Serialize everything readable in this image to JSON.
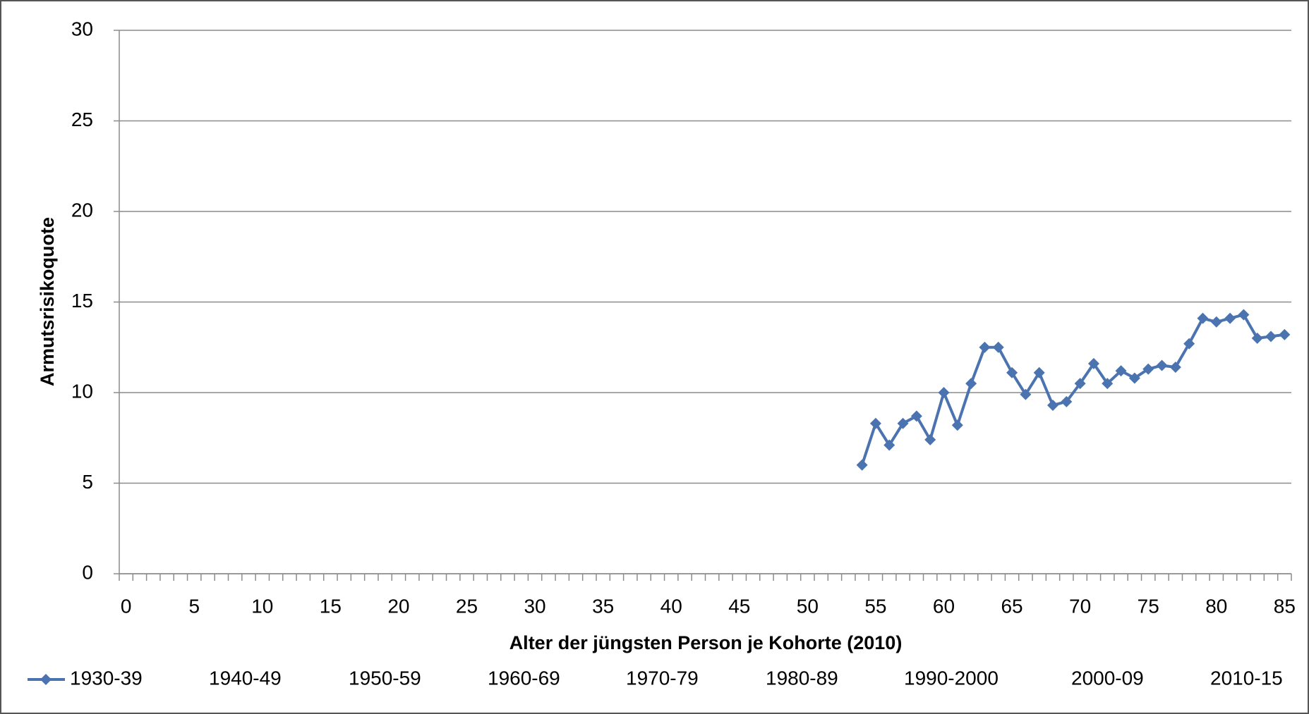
{
  "chart_data": {
    "type": "line",
    "xlabel": "Alter der jüngsten Person je Kohorte (2010)",
    "ylabel": "Armutsrisikoquote",
    "x": [
      54,
      55,
      56,
      57,
      58,
      59,
      60,
      61,
      62,
      63,
      64,
      65,
      66,
      67,
      68,
      69,
      70,
      71,
      72,
      73,
      74,
      75,
      76,
      77,
      78,
      79,
      80,
      81,
      82,
      83,
      84,
      85
    ],
    "series": [
      {
        "name": "1930-39",
        "color": "#4a73b0",
        "values": [
          6.0,
          8.3,
          7.1,
          8.3,
          8.7,
          7.4,
          10.0,
          8.2,
          10.5,
          12.5,
          12.5,
          11.1,
          9.9,
          11.1,
          9.3,
          9.5,
          10.5,
          11.6,
          10.5,
          11.2,
          10.8,
          11.3,
          11.5,
          11.4,
          12.7,
          14.1,
          13.9,
          14.1,
          14.3,
          13.0,
          13.1,
          13.2
        ]
      },
      {
        "name": "1940-49",
        "values": [
          null,
          null,
          null,
          null,
          null,
          null,
          null,
          null,
          null,
          null,
          null,
          null,
          null,
          null,
          null,
          null,
          null,
          null,
          null,
          null,
          null,
          null,
          null,
          null,
          null,
          null,
          null,
          null,
          null,
          null,
          null,
          null
        ]
      },
      {
        "name": "1950-59",
        "values": [
          null,
          null,
          null,
          null,
          null,
          null,
          null,
          null,
          null,
          null,
          null,
          null,
          null,
          null,
          null,
          null,
          null,
          null,
          null,
          null,
          null,
          null,
          null,
          null,
          null,
          null,
          null,
          null,
          null,
          null,
          null,
          null
        ]
      },
      {
        "name": "1960-69",
        "values": [
          null,
          null,
          null,
          null,
          null,
          null,
          null,
          null,
          null,
          null,
          null,
          null,
          null,
          null,
          null,
          null,
          null,
          null,
          null,
          null,
          null,
          null,
          null,
          null,
          null,
          null,
          null,
          null,
          null,
          null,
          null,
          null
        ]
      },
      {
        "name": "1970-79",
        "values": [
          null,
          null,
          null,
          null,
          null,
          null,
          null,
          null,
          null,
          null,
          null,
          null,
          null,
          null,
          null,
          null,
          null,
          null,
          null,
          null,
          null,
          null,
          null,
          null,
          null,
          null,
          null,
          null,
          null,
          null,
          null,
          null
        ]
      },
      {
        "name": "1980-89",
        "values": [
          null,
          null,
          null,
          null,
          null,
          null,
          null,
          null,
          null,
          null,
          null,
          null,
          null,
          null,
          null,
          null,
          null,
          null,
          null,
          null,
          null,
          null,
          null,
          null,
          null,
          null,
          null,
          null,
          null,
          null,
          null,
          null
        ]
      },
      {
        "name": "1990-2000",
        "values": [
          null,
          null,
          null,
          null,
          null,
          null,
          null,
          null,
          null,
          null,
          null,
          null,
          null,
          null,
          null,
          null,
          null,
          null,
          null,
          null,
          null,
          null,
          null,
          null,
          null,
          null,
          null,
          null,
          null,
          null,
          null,
          null
        ]
      },
      {
        "name": "2000-09",
        "values": [
          null,
          null,
          null,
          null,
          null,
          null,
          null,
          null,
          null,
          null,
          null,
          null,
          null,
          null,
          null,
          null,
          null,
          null,
          null,
          null,
          null,
          null,
          null,
          null,
          null,
          null,
          null,
          null,
          null,
          null,
          null,
          null
        ]
      },
      {
        "name": "2010-15",
        "values": [
          null,
          null,
          null,
          null,
          null,
          null,
          null,
          null,
          null,
          null,
          null,
          null,
          null,
          null,
          null,
          null,
          null,
          null,
          null,
          null,
          null,
          null,
          null,
          null,
          null,
          null,
          null,
          null,
          null,
          null,
          null,
          null
        ]
      }
    ],
    "xlim": [
      -0.5,
      85.5
    ],
    "xticks": [
      0,
      5,
      10,
      15,
      20,
      25,
      30,
      35,
      40,
      45,
      50,
      55,
      60,
      65,
      70,
      75,
      80,
      85
    ],
    "ylim": [
      0,
      30
    ],
    "yticks": [
      0,
      5,
      10,
      15,
      20,
      25,
      30
    ],
    "grid": true,
    "legend": "bottom"
  }
}
